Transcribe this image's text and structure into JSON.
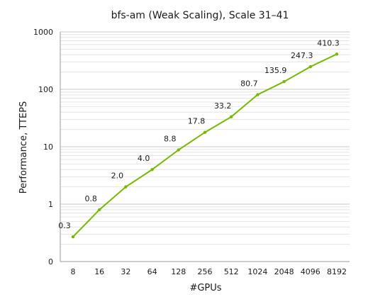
{
  "chart_data": {
    "type": "line",
    "title": "bfs-am (Weak Scaling), Scale 31–41",
    "xlabel": "#GPUs",
    "ylabel": "Performance, TTEPS",
    "y_scale": "log",
    "ylim": [
      0.1,
      1000
    ],
    "grid": true,
    "legend": "none",
    "categories": [
      "8",
      "16",
      "32",
      "64",
      "128",
      "256",
      "512",
      "1024",
      "2048",
      "4096",
      "8192"
    ],
    "y_ticks": [
      {
        "value": 0.1,
        "label": "0"
      },
      {
        "value": 1,
        "label": "1"
      },
      {
        "value": 10,
        "label": "10"
      },
      {
        "value": 100,
        "label": "100"
      },
      {
        "value": 1000,
        "label": "1000"
      }
    ],
    "series": [
      {
        "values": [
          0.27,
          0.8,
          2.0,
          4.0,
          8.8,
          17.8,
          33.2,
          80.7,
          135.9,
          247.3,
          410.3
        ],
        "data_labels": [
          "0.3",
          "0.8",
          "2.0",
          "4.0",
          "8.8",
          "17.8",
          "33.2",
          "80.7",
          "135.9",
          "247.3",
          "410.3"
        ],
        "color": "#76b900"
      }
    ]
  }
}
